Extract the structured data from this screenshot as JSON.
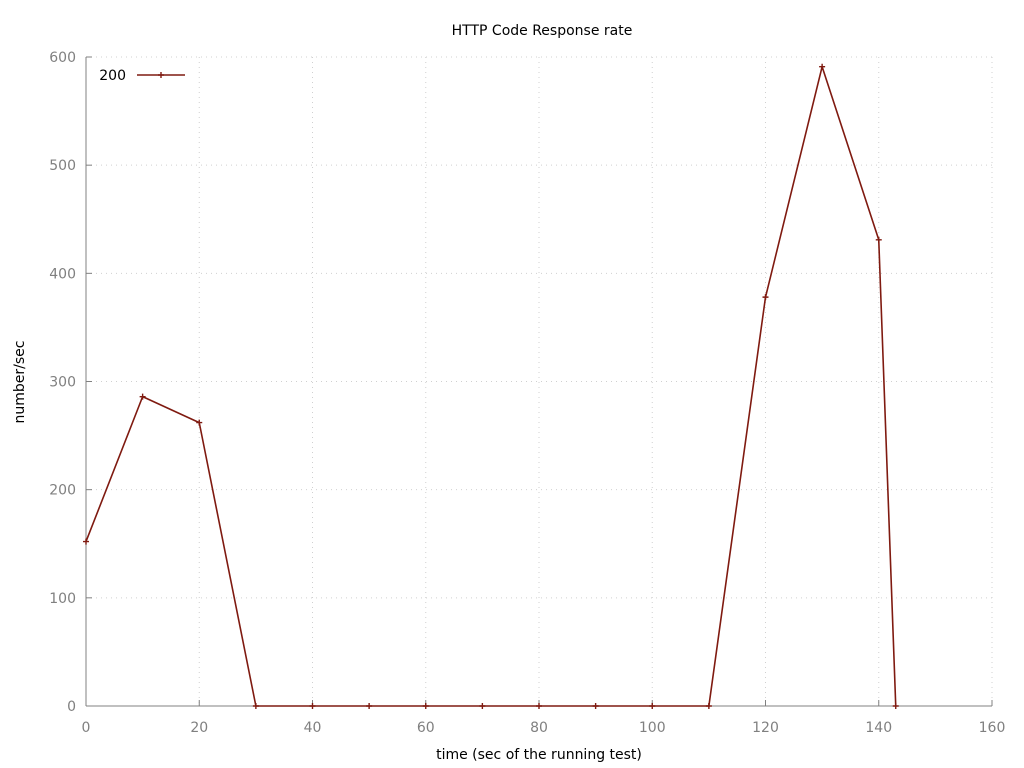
{
  "chart_data": {
    "type": "line",
    "title": "HTTP Code Response rate",
    "xlabel": "time (sec of the running test)",
    "ylabel": "number/sec",
    "xlim": [
      0,
      160
    ],
    "ylim": [
      0,
      600
    ],
    "xticks": [
      0,
      20,
      40,
      60,
      80,
      100,
      120,
      140,
      160
    ],
    "yticks": [
      0,
      100,
      200,
      300,
      400,
      500,
      600
    ],
    "grid": true,
    "legend_position": "top-left",
    "series": [
      {
        "name": "200",
        "color": "#7f1a10",
        "marker": "plus",
        "x": [
          0,
          10,
          20,
          30,
          40,
          50,
          60,
          70,
          80,
          90,
          100,
          110,
          120,
          130,
          140,
          143
        ],
        "y": [
          152,
          286,
          262,
          0,
          0,
          0,
          0,
          0,
          0,
          0,
          0,
          0,
          378,
          591,
          431,
          0
        ]
      }
    ]
  }
}
